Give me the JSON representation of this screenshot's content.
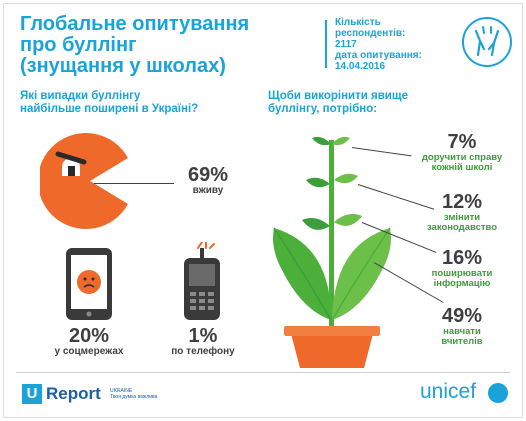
{
  "title": {
    "line1": "Глобальне опитування",
    "line2": "про буллінг",
    "line3": "(знущання у школах)"
  },
  "meta": {
    "respondents_label_1": "Кількість",
    "respondents_label_2": "респондентів:",
    "respondents_value": "2117",
    "date_label": "дата опитування:",
    "date_value": "14.04.2016"
  },
  "left": {
    "question_line1": "Які випадки буллінгу",
    "question_line2": "найбільше поширені в Україні?",
    "stats": [
      {
        "value": "69%",
        "label": "вживу"
      },
      {
        "value": "20%",
        "label": "у соцмережах"
      },
      {
        "value": "1%",
        "label": "по телефону"
      }
    ]
  },
  "right": {
    "question_line1": "Щоби викорінити явище",
    "question_line2": "буллінгу, потрібно:",
    "stats": [
      {
        "value": "7%",
        "label_line1": "доручити справу",
        "label_line2": "кожній школі"
      },
      {
        "value": "12%",
        "label_line1": "змінити",
        "label_line2": "законодавство"
      },
      {
        "value": "16%",
        "label_line1": "поширювати",
        "label_line2": "інформацію"
      },
      {
        "value": "49%",
        "label_line1": "навчати",
        "label_line2": "вчителів"
      }
    ]
  },
  "footer": {
    "ureport_mark": "U",
    "ureport_name": "Report",
    "ureport_country": "UKRAINE",
    "ureport_tagline": "Твоя думка важлива",
    "unicef": "unicef"
  },
  "colors": {
    "accent_blue": "#1aa3d8",
    "orange": "#ef6a2a",
    "green": "#3a9e3a",
    "dark": "#3f3f3f"
  },
  "icons": [
    "bullying-icon",
    "bully-face-icon",
    "tablet-icon",
    "phone-icon",
    "plant-illustration",
    "unicef-globe-icon"
  ]
}
